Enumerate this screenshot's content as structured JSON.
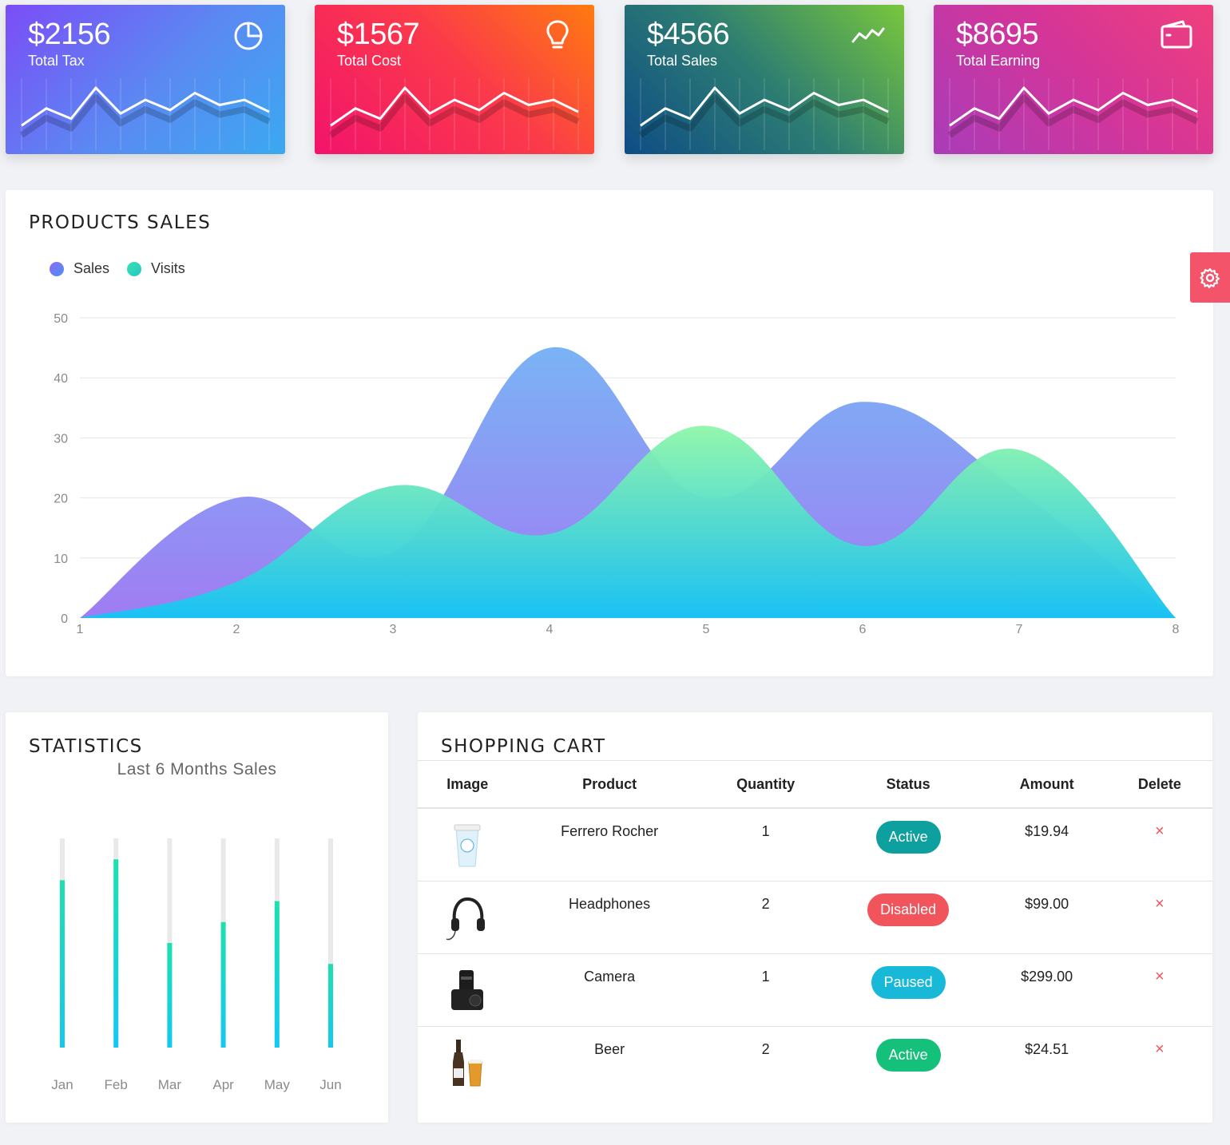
{
  "cards": [
    {
      "value": "$2156",
      "label": "Total Tax",
      "icon": "pie-chart-icon"
    },
    {
      "value": "$1567",
      "label": "Total Cost",
      "icon": "lightbulb-icon"
    },
    {
      "value": "$4566",
      "label": "Total Sales",
      "icon": "trending-line-icon"
    },
    {
      "value": "$8695",
      "label": "Total Earning",
      "icon": "wallet-icon"
    }
  ],
  "sparkline": [
    5,
    15,
    9,
    27,
    12,
    20,
    14,
    24,
    17,
    20,
    13
  ],
  "products": {
    "title": "PRODUCTS SALES",
    "legend": [
      {
        "name": "Sales",
        "color": "#6e7ff3"
      },
      {
        "name": "Visits",
        "color": "#35d3a2"
      }
    ]
  },
  "chart_data": [
    {
      "type": "area",
      "title": "",
      "x": [
        1,
        2,
        3,
        4,
        5,
        6,
        7,
        8
      ],
      "ylim": [
        0,
        50
      ],
      "yticks": [
        0,
        10,
        20,
        30,
        40,
        50
      ],
      "grid": true,
      "legend_position": "top-left",
      "series": [
        {
          "name": "Sales",
          "values": [
            0,
            20,
            11,
            45,
            20,
            36,
            21,
            0
          ]
        },
        {
          "name": "Visits",
          "values": [
            0,
            6,
            22,
            14,
            32,
            12,
            28,
            0
          ]
        }
      ]
    },
    {
      "type": "bar",
      "title": "Last 6 Months Sales",
      "categories": [
        "Jan",
        "Feb",
        "Mar",
        "Apr",
        "May",
        "Jun"
      ],
      "values": [
        80,
        90,
        50,
        60,
        70,
        40
      ],
      "ylim": [
        0,
        100
      ]
    }
  ],
  "statistics": {
    "title": "STATISTICS",
    "subtitle": "Last 6 Months Sales"
  },
  "cart": {
    "title": "SHOPPING CART",
    "columns": [
      "Image",
      "Product",
      "Quantity",
      "Status",
      "Amount",
      "Delete"
    ],
    "rows": [
      {
        "image": "coffee-cup-image",
        "product": "Ferrero Rocher",
        "quantity": "1",
        "status": "Active",
        "status_color": "#0e9f9f",
        "amount": "$19.94",
        "delete": "×"
      },
      {
        "image": "headphones-image",
        "product": "Headphones",
        "quantity": "2",
        "status": "Disabled",
        "status_color": "#f2545b",
        "amount": "$99.00",
        "delete": "×"
      },
      {
        "image": "camera-image",
        "product": "Camera",
        "quantity": "1",
        "status": "Paused",
        "status_color": "#17b8d8",
        "amount": "$299.00",
        "delete": "×"
      },
      {
        "image": "beer-image",
        "product": "Beer",
        "quantity": "2",
        "status": "Active",
        "status_color": "#14c07a",
        "amount": "$24.51",
        "delete": "×"
      }
    ]
  },
  "settings_icon": "gear-icon"
}
